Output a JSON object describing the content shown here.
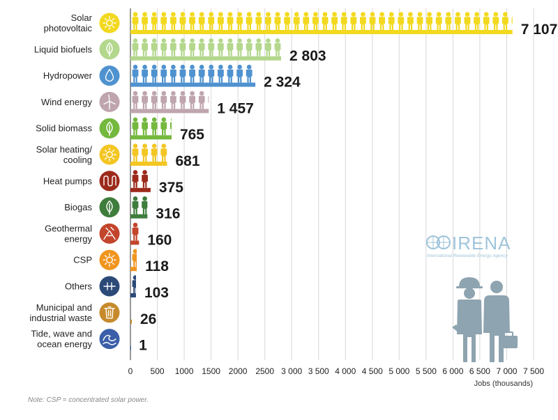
{
  "chart_data": {
    "type": "bar",
    "orientation": "horizontal",
    "categories": [
      [
        "Solar",
        "photovoltaic"
      ],
      [
        "Liquid biofuels"
      ],
      [
        "Hydropower"
      ],
      [
        "Wind energy"
      ],
      [
        "Solid biomass"
      ],
      [
        "Solar heating/",
        "cooling"
      ],
      [
        "Heat pumps"
      ],
      [
        "Biogas"
      ],
      [
        "Geothermal",
        "energy"
      ],
      [
        "CSP"
      ],
      [
        "Others"
      ],
      [
        "Municipal and",
        "industrial waste"
      ],
      [
        "Tide, wave and",
        "ocean energy"
      ]
    ],
    "values": [
      7107,
      2803,
      2324,
      1457,
      765,
      681,
      375,
      316,
      160,
      118,
      103,
      26,
      1
    ],
    "value_labels": [
      "7 107",
      "2 803",
      "2 324",
      "1 457",
      "765",
      "681",
      "375",
      "316",
      "160",
      "118",
      "103",
      "26",
      "1"
    ],
    "colors": [
      "#f2d91f",
      "#b3d78c",
      "#4f92cf",
      "#bfa5ad",
      "#74b83e",
      "#f3c623",
      "#9c2a1b",
      "#3f7d3c",
      "#c2452c",
      "#f0951f",
      "#2c4a78",
      "#c68a2c",
      "#3a5fa8"
    ],
    "icons": [
      "sun-icon",
      "leaf-icon",
      "water-drop-icon",
      "wind-turbine-icon",
      "leaf-icon",
      "sun-icon",
      "heat-coil-icon",
      "leaf-icon",
      "geothermal-icon",
      "sun-icon",
      "plus-icon",
      "waste-bin-icon",
      "wave-icon"
    ],
    "xlim": [
      0,
      7500
    ],
    "xticks": [
      0,
      500,
      1000,
      1500,
      2000,
      2500,
      3000,
      3500,
      4000,
      4500,
      5000,
      5500,
      6000,
      6500,
      7000,
      7500
    ],
    "xtick_labels": [
      "0",
      "500",
      "1000",
      "1500",
      "2000",
      "2500",
      "3 000",
      "3 500",
      "4 000",
      "4 500",
      "5 000",
      "5 500",
      "6 000",
      "6 500",
      "7 000",
      "7 500"
    ],
    "xlabel": "Jobs (thousands)",
    "grid": "vertical",
    "legend": "none"
  },
  "note": "Note: CSP = concentrated solar power.",
  "logo": {
    "name": "IRENA",
    "subtitle": "International Renewable Energy Agency",
    "color": "#9fc4da"
  },
  "illustration": {
    "workers_color": "#8ea4b0"
  }
}
